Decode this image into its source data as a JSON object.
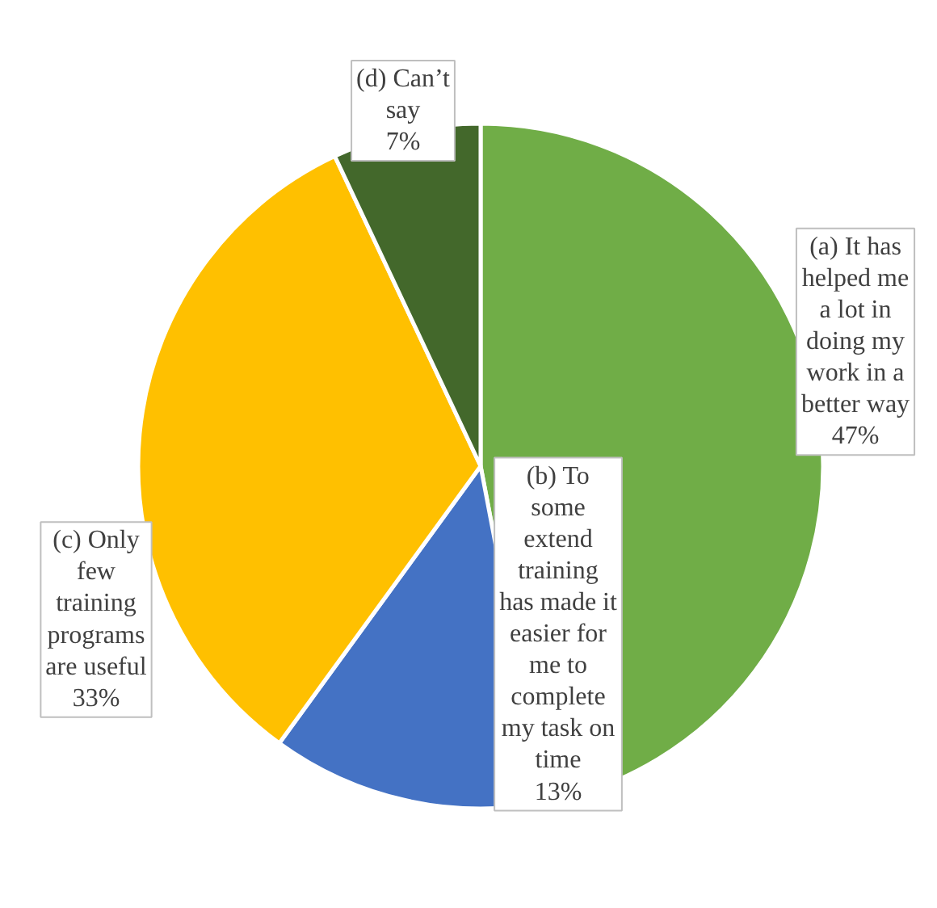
{
  "chart_data": {
    "type": "pie",
    "categories": [
      "(a) It has\nhelped me\na lot in\ndoing my\nwork in a\nbetter way",
      "(b) To\nsome\nextend\ntraining\nhas made it\neasier for\nme to\ncomplete\nmy task on\ntime",
      "(c) Only\nfew\ntraining\nprograms\nare useful",
      "(d) Can’t\nsay"
    ],
    "values": [
      47,
      13,
      33,
      7
    ],
    "value_labels": [
      "47%",
      "13%",
      "33%",
      "7%"
    ],
    "colors": [
      "#70ad47",
      "#4472c4",
      "#ffc000",
      "#43682b"
    ]
  }
}
